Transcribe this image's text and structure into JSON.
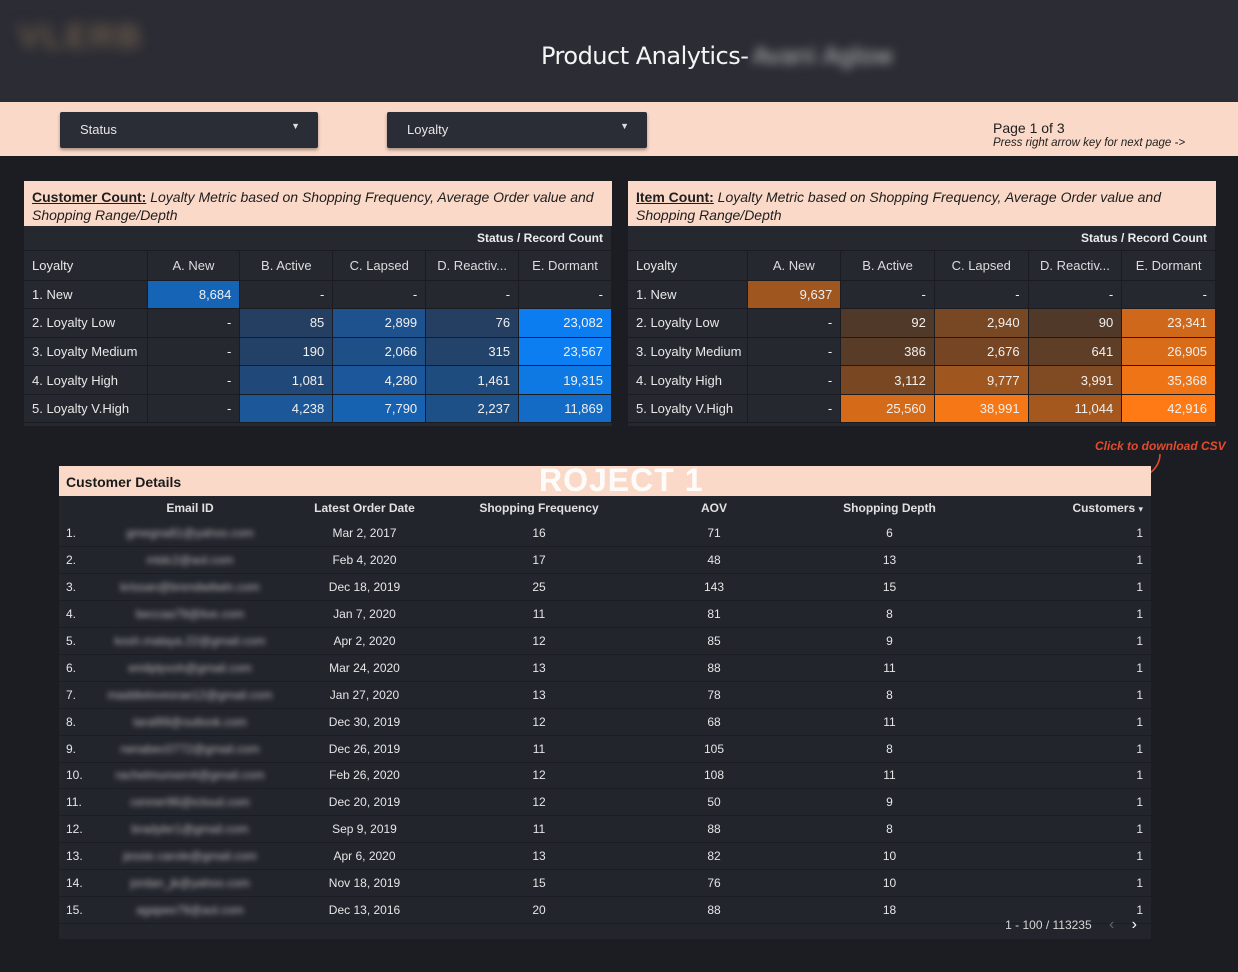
{
  "header": {
    "title": "Product Analytics-",
    "title_redacted": "Avani Aglow",
    "logo_text": "VLERB"
  },
  "filters": {
    "status_label": "Status",
    "loyalty_label": "Loyalty"
  },
  "page_info": {
    "page": "Page 1 of 3",
    "hint": "Press right arrow key for next page ->"
  },
  "colors": {
    "blue_max": "#0c7ef2",
    "orange_max": "#ff7a14",
    "panel_bg": "#262830",
    "accent_bg": "#fbd9c8"
  },
  "customer_count": {
    "title_bold": "Customer Count:",
    "title_rest": " Loyalty Metric based on Shopping Frequency, Average Order value and Shopping Range/Depth",
    "super_header": "Status / Record Count",
    "row_header": "Loyalty",
    "columns": [
      "A. New",
      "B. Active",
      "C. Lapsed",
      "D. Reactiv...",
      "E. Dormant"
    ],
    "rows": [
      {
        "label": "1. New",
        "values": [
          "8,684",
          "-",
          "-",
          "-",
          "-"
        ],
        "nums": [
          8684,
          0,
          0,
          0,
          0
        ]
      },
      {
        "label": "2. Loyalty Low",
        "values": [
          "-",
          "85",
          "2,899",
          "76",
          "23,082"
        ],
        "nums": [
          0,
          85,
          2899,
          76,
          23082
        ]
      },
      {
        "label": "3. Loyalty Medium",
        "values": [
          "-",
          "190",
          "2,066",
          "315",
          "23,567"
        ],
        "nums": [
          0,
          190,
          2066,
          315,
          23567
        ]
      },
      {
        "label": "4. Loyalty High",
        "values": [
          "-",
          "1,081",
          "4,280",
          "1,461",
          "19,315"
        ],
        "nums": [
          0,
          1081,
          4280,
          1461,
          19315
        ]
      },
      {
        "label": "5. Loyalty V.High",
        "values": [
          "-",
          "4,238",
          "7,790",
          "2,237",
          "11,869"
        ],
        "nums": [
          0,
          4238,
          7790,
          2237,
          11869
        ]
      }
    ]
  },
  "item_count": {
    "title_bold": "Item Count:",
    "title_rest": " Loyalty Metric based on Shopping Frequency, Average Order value and Shopping Range/Depth",
    "super_header": "Status / Record Count",
    "row_header": "Loyalty",
    "columns": [
      "A. New",
      "B. Active",
      "C. Lapsed",
      "D. Reactiv...",
      "E. Dormant"
    ],
    "rows": [
      {
        "label": "1. New",
        "values": [
          "9,637",
          "-",
          "-",
          "-",
          "-"
        ],
        "nums": [
          9637,
          0,
          0,
          0,
          0
        ]
      },
      {
        "label": "2. Loyalty Low",
        "values": [
          "-",
          "92",
          "2,940",
          "90",
          "23,341"
        ],
        "nums": [
          0,
          92,
          2940,
          90,
          23341
        ]
      },
      {
        "label": "3. Loyalty Medium",
        "values": [
          "-",
          "386",
          "2,676",
          "641",
          "26,905"
        ],
        "nums": [
          0,
          386,
          2676,
          641,
          26905
        ]
      },
      {
        "label": "4. Loyalty High",
        "values": [
          "-",
          "3,112",
          "9,777",
          "3,991",
          "35,368"
        ],
        "nums": [
          0,
          3112,
          9777,
          3991,
          35368
        ]
      },
      {
        "label": "5. Loyalty V.High",
        "values": [
          "-",
          "25,560",
          "38,991",
          "11,044",
          "42,916"
        ],
        "nums": [
          0,
          25560,
          38991,
          11044,
          42916
        ]
      }
    ]
  },
  "csv_link": "Click to download CSV",
  "details": {
    "title": "Customer Details",
    "watermark": "ROJECT 1",
    "columns": [
      "Email ID",
      "Latest Order Date",
      "Shopping Frequency",
      "AOV",
      "Shopping Depth",
      "Customers"
    ],
    "sort_indicator": "▾",
    "rows": [
      [
        "1.",
        "gmegna81@yahoo.com",
        "Mar 2, 2017",
        "16",
        "71",
        "6",
        "1"
      ],
      [
        "2.",
        "mtdc2@aol.com",
        "Feb 4, 2020",
        "17",
        "48",
        "13",
        "1"
      ],
      [
        "3.",
        "krissan@brendwitwin.com",
        "Dec 18, 2019",
        "25",
        "143",
        "15",
        "1"
      ],
      [
        "4.",
        "beccaa79@live.com",
        "Jan 7, 2020",
        "11",
        "81",
        "8",
        "1"
      ],
      [
        "5.",
        "kosh.malaya.22@gmail.com",
        "Apr 2, 2020",
        "12",
        "85",
        "9",
        "1"
      ],
      [
        "6.",
        "emilplyvoh@gmail.com",
        "Mar 24, 2020",
        "13",
        "88",
        "11",
        "1"
      ],
      [
        "7.",
        "maddielovesrae12@gmail.com",
        "Jan 27, 2020",
        "13",
        "78",
        "8",
        "1"
      ],
      [
        "8.",
        "taral99@outlook.com",
        "Dec 30, 2019",
        "12",
        "68",
        "11",
        "1"
      ],
      [
        "9.",
        "rwnabec0772@gmail.com",
        "Dec 26, 2019",
        "11",
        "105",
        "8",
        "1"
      ],
      [
        "10.",
        "rachelmunsen4@gmail.com",
        "Feb 26, 2020",
        "12",
        "108",
        "11",
        "1"
      ],
      [
        "11.",
        "cenner96@icloud.com",
        "Dec 20, 2019",
        "12",
        "50",
        "9",
        "1"
      ],
      [
        "12.",
        "bradyler1@gmail.com",
        "Sep 9, 2019",
        "11",
        "88",
        "8",
        "1"
      ],
      [
        "13.",
        "jessie.carole@gmail.com",
        "Apr 6, 2020",
        "13",
        "82",
        "10",
        "1"
      ],
      [
        "14.",
        "jordan_jk@yahoo.com",
        "Nov 18, 2019",
        "15",
        "76",
        "10",
        "1"
      ],
      [
        "15.",
        "agapee79@aol.com",
        "Dec 13, 2016",
        "20",
        "88",
        "18",
        "1"
      ]
    ],
    "pager_text": "1 - 100 / 113235",
    "prev_icon": "‹",
    "next_icon": "›"
  }
}
